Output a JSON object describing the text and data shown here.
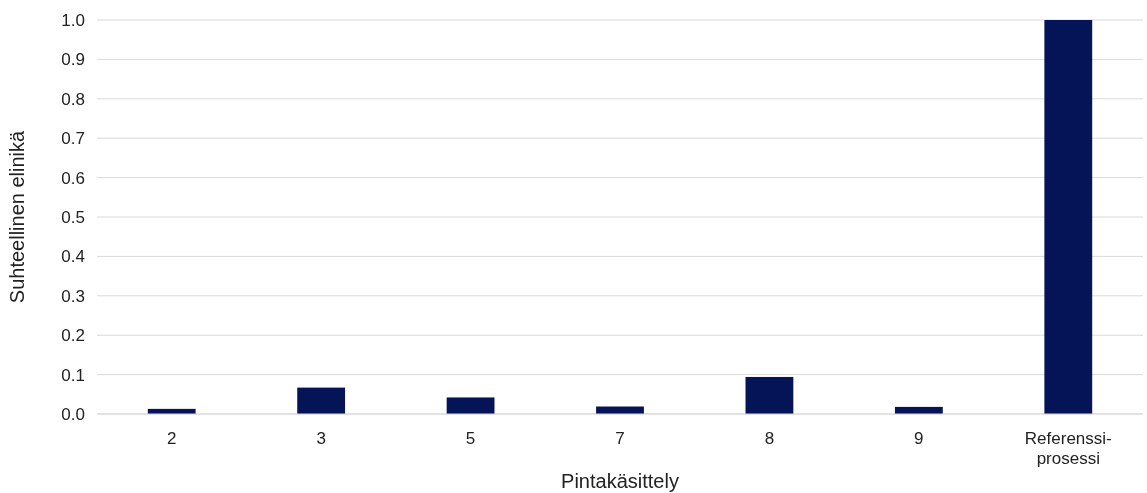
{
  "chart_data": {
    "type": "bar",
    "xlabel": "Pintakäsittely",
    "ylabel": "Suhteellinen elinikä",
    "categories": [
      "2",
      "3",
      "5",
      "7",
      "8",
      "9",
      "Referenssi-prosessi"
    ],
    "values": [
      0.013,
      0.067,
      0.042,
      0.019,
      0.094,
      0.018,
      1.0
    ],
    "color": "#041456",
    "ylim": [
      0,
      1.0
    ],
    "yticks": [
      {
        "value": 0,
        "label": "0.0"
      },
      {
        "value": 0.1,
        "label": "0.1"
      },
      {
        "value": 0.2,
        "label": "0.2"
      },
      {
        "value": 0.3,
        "label": "0.3"
      },
      {
        "value": 0.4,
        "label": "0.4"
      },
      {
        "value": 0.5,
        "label": "0.5"
      },
      {
        "value": 0.6,
        "label": "0.6"
      },
      {
        "value": 0.7,
        "label": "0.7"
      },
      {
        "value": 0.8,
        "label": "0.8"
      },
      {
        "value": 0.9,
        "label": "0.9"
      },
      {
        "value": 1.0,
        "label": "1.0"
      }
    ],
    "grid": "y"
  }
}
